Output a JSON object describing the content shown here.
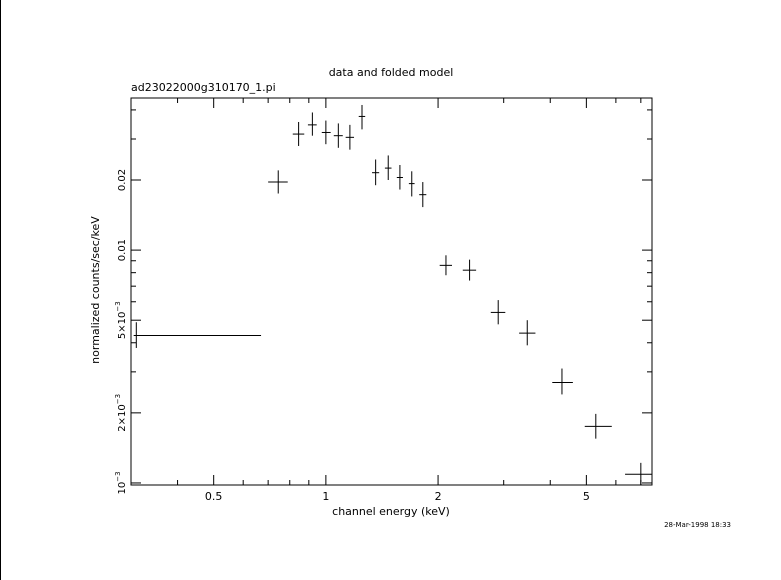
{
  "chart_data": {
    "type": "scatter",
    "title": "data and folded model",
    "subtitle": "ad23022000g310170_1.pi",
    "xlabel": "channel energy (keV)",
    "ylabel": "normalized counts/sec/keV",
    "timestamp": "28-Mar-1998 18:33",
    "x_scale": "log",
    "y_scale": "log",
    "xlim": [
      0.3,
      7.5
    ],
    "ylim": [
      0.00098,
      0.045
    ],
    "x_tick_labels": [
      {
        "value": 0.5,
        "label": "0.5"
      },
      {
        "value": 1,
        "label": "1"
      },
      {
        "value": 2,
        "label": "2"
      },
      {
        "value": 5,
        "label": "5"
      }
    ],
    "y_tick_labels": [
      {
        "value": 0.001,
        "base": "10",
        "exp": "−3",
        "mant": ""
      },
      {
        "value": 0.002,
        "base": "10",
        "exp": "−3",
        "mant": "2×"
      },
      {
        "value": 0.005,
        "base": "10",
        "exp": "−3",
        "mant": "5×"
      },
      {
        "value": 0.01,
        "base": "0.01",
        "exp": "",
        "mant": ""
      },
      {
        "value": 0.02,
        "base": "0.02",
        "exp": "",
        "mant": ""
      }
    ],
    "series": [
      {
        "points": [
          {
            "x": 0.31,
            "xlo": 0.305,
            "xhi": 0.67,
            "y": 0.0043,
            "ylo": 0.0038,
            "yhi": 0.0049
          },
          {
            "x": 0.745,
            "xlo": 0.7,
            "xhi": 0.79,
            "y": 0.0196,
            "ylo": 0.0175,
            "yhi": 0.022
          },
          {
            "x": 0.845,
            "xlo": 0.815,
            "xhi": 0.875,
            "y": 0.0315,
            "ylo": 0.028,
            "yhi": 0.0355
          },
          {
            "x": 0.92,
            "xlo": 0.895,
            "xhi": 0.945,
            "y": 0.0345,
            "ylo": 0.031,
            "yhi": 0.039
          },
          {
            "x": 1.0,
            "xlo": 0.975,
            "xhi": 1.03,
            "y": 0.032,
            "ylo": 0.0285,
            "yhi": 0.036
          },
          {
            "x": 1.08,
            "xlo": 1.05,
            "xhi": 1.11,
            "y": 0.031,
            "ylo": 0.0275,
            "yhi": 0.035
          },
          {
            "x": 1.16,
            "xlo": 1.13,
            "xhi": 1.19,
            "y": 0.0305,
            "ylo": 0.027,
            "yhi": 0.0345
          },
          {
            "x": 1.25,
            "xlo": 1.225,
            "xhi": 1.275,
            "y": 0.0375,
            "ylo": 0.033,
            "yhi": 0.042
          },
          {
            "x": 1.36,
            "xlo": 1.33,
            "xhi": 1.39,
            "y": 0.0215,
            "ylo": 0.019,
            "yhi": 0.0245
          },
          {
            "x": 1.47,
            "xlo": 1.44,
            "xhi": 1.5,
            "y": 0.0225,
            "ylo": 0.02,
            "yhi": 0.0255
          },
          {
            "x": 1.58,
            "xlo": 1.55,
            "xhi": 1.61,
            "y": 0.0205,
            "ylo": 0.0182,
            "yhi": 0.0232
          },
          {
            "x": 1.7,
            "xlo": 1.67,
            "xhi": 1.73,
            "y": 0.0193,
            "ylo": 0.017,
            "yhi": 0.0218
          },
          {
            "x": 1.82,
            "xlo": 1.78,
            "xhi": 1.86,
            "y": 0.0173,
            "ylo": 0.0153,
            "yhi": 0.0196
          },
          {
            "x": 2.1,
            "xlo": 2.02,
            "xhi": 2.18,
            "y": 0.0086,
            "ylo": 0.0078,
            "yhi": 0.0095
          },
          {
            "x": 2.43,
            "xlo": 2.33,
            "xhi": 2.53,
            "y": 0.0082,
            "ylo": 0.0074,
            "yhi": 0.0091
          },
          {
            "x": 2.9,
            "xlo": 2.77,
            "xhi": 3.03,
            "y": 0.0054,
            "ylo": 0.0048,
            "yhi": 0.0061
          },
          {
            "x": 3.47,
            "xlo": 3.3,
            "xhi": 3.65,
            "y": 0.0044,
            "ylo": 0.0039,
            "yhi": 0.005
          },
          {
            "x": 4.3,
            "xlo": 4.05,
            "xhi": 4.6,
            "y": 0.0027,
            "ylo": 0.0024,
            "yhi": 0.0031
          },
          {
            "x": 5.3,
            "xlo": 4.95,
            "xhi": 5.85,
            "y": 0.00175,
            "ylo": 0.00155,
            "yhi": 0.00198
          },
          {
            "x": 7.0,
            "xlo": 6.35,
            "xhi": 7.6,
            "y": 0.00109,
            "ylo": 0.00097,
            "yhi": 0.00122
          }
        ]
      }
    ]
  }
}
